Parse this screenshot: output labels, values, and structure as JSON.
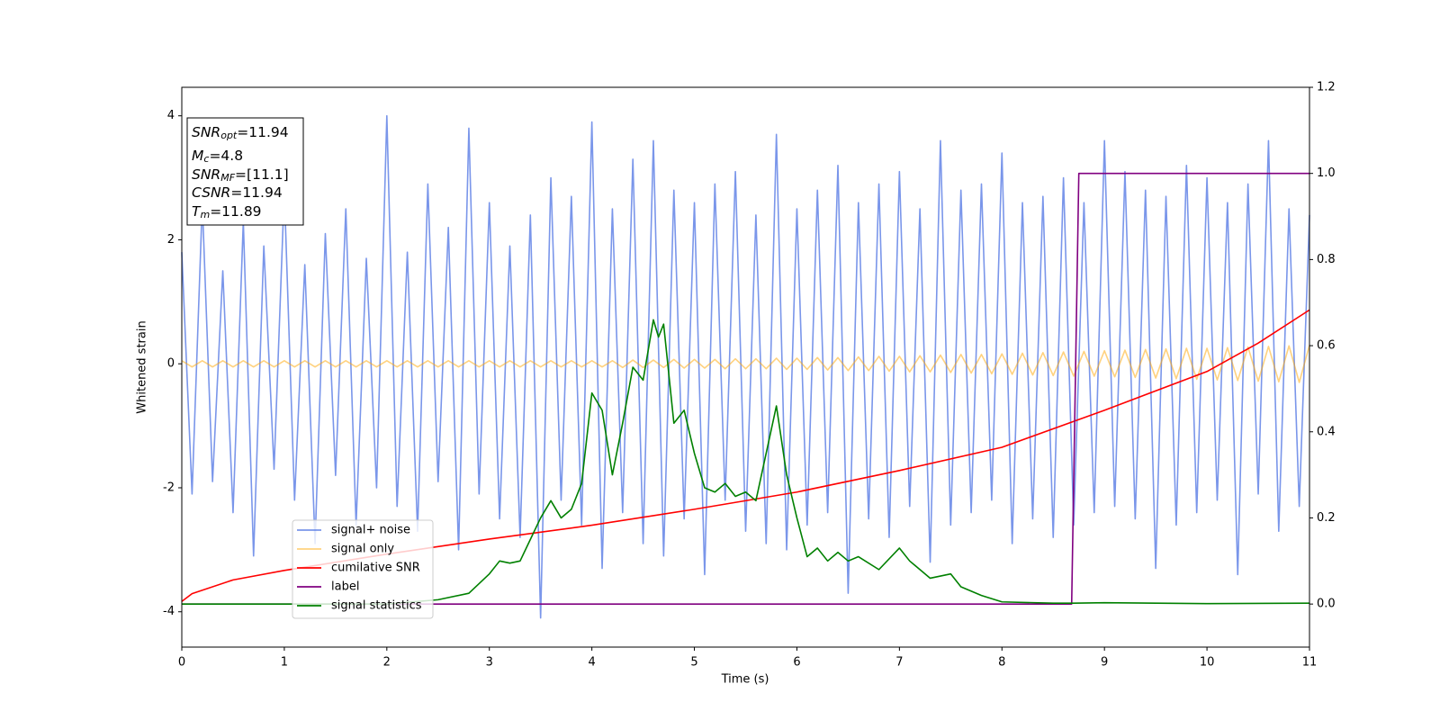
{
  "chart_data": {
    "type": "line",
    "xlabel": "Time (s)",
    "ylabel": "Whitened strain",
    "xlim": [
      0,
      11
    ],
    "xticks": [
      0,
      1,
      2,
      3,
      4,
      5,
      6,
      7,
      8,
      9,
      10,
      11
    ],
    "ylim": [
      -4.57,
      4.46
    ],
    "yticks": [
      -4,
      -2,
      0,
      2,
      4
    ],
    "y2lim": [
      -0.1,
      1.2
    ],
    "y2ticks": [
      {
        "value": 0,
        "label": "0.0"
      },
      0.2,
      0.4,
      0.6,
      0.8,
      {
        "value": 1,
        "label": "1.0"
      },
      1.2
    ],
    "legend": "lower left",
    "annotation": [
      {
        "symbol": "SNR",
        "subscript": "opt",
        "text": "=11.94"
      },
      {
        "symbol": "M",
        "subscript": "c",
        "text": "=4.8"
      },
      {
        "symbol": "SNR",
        "subscript": "MF",
        "text": "=[11.1]"
      },
      {
        "symbol": "CSNR",
        "text": "=11.94"
      },
      {
        "symbol": "T",
        "subscript": "m",
        "text": "=11.89"
      }
    ],
    "x": [
      0,
      0.1,
      0.2,
      0.3,
      0.4,
      0.5,
      0.6,
      0.7,
      0.8,
      0.9,
      1,
      1.1,
      1.2,
      1.3,
      1.4,
      1.5,
      1.6,
      1.7,
      1.8,
      1.9,
      2,
      2.1,
      2.2,
      2.3,
      2.4,
      2.5,
      2.6,
      2.7,
      2.8,
      2.9,
      3,
      3.1,
      3.2,
      3.3,
      3.4,
      3.5,
      3.6,
      3.7,
      3.8,
      3.9,
      4,
      4.1,
      4.2,
      4.3,
      4.4,
      4.5,
      4.6,
      4.7,
      4.8,
      4.9,
      5,
      5.1,
      5.2,
      5.3,
      5.4,
      5.5,
      5.6,
      5.7,
      5.8,
      5.9,
      6,
      6.1,
      6.2,
      6.3,
      6.4,
      6.5,
      6.6,
      6.7,
      6.8,
      6.9,
      7,
      7.1,
      7.2,
      7.3,
      7.4,
      7.5,
      7.6,
      7.7,
      7.8,
      7.9,
      8,
      8.1,
      8.2,
      8.3,
      8.4,
      8.5,
      8.6,
      8.7,
      8.8,
      8.9,
      9,
      9.1,
      9.2,
      9.3,
      9.4,
      9.5,
      9.6,
      9.7,
      9.8,
      9.9,
      10,
      10.1,
      10.2,
      10.3,
      10.4,
      10.5,
      10.6,
      10.7,
      10.8,
      10.9,
      11
    ],
    "series": [
      {
        "name": "signal+ noise",
        "color": "#4169e1",
        "opacity": 0.7,
        "values": [
          1.8,
          -2.1,
          2.6,
          -1.9,
          1.5,
          -2.4,
          2.3,
          -3.1,
          1.9,
          -1.7,
          2.8,
          -2.2,
          1.6,
          -2.9,
          2.1,
          -1.8,
          2.5,
          -2.6,
          1.7,
          -2.0,
          4.0,
          -2.3,
          1.8,
          -2.7,
          2.9,
          -1.9,
          2.2,
          -3.0,
          3.8,
          -2.1,
          2.6,
          -2.5,
          1.9,
          -2.8,
          2.4,
          -4.1,
          3.0,
          -2.2,
          2.7,
          -2.6,
          3.9,
          -3.3,
          2.5,
          -2.4,
          3.3,
          -2.9,
          3.6,
          -3.1,
          2.8,
          -2.5,
          2.6,
          -3.4,
          2.9,
          -2.2,
          3.1,
          -2.7,
          2.4,
          -2.9,
          3.7,
          -3.0,
          2.5,
          -2.6,
          2.8,
          -2.4,
          3.2,
          -3.7,
          2.6,
          -2.5,
          2.9,
          -2.8,
          3.1,
          -2.3,
          2.5,
          -3.2,
          3.6,
          -2.6,
          2.8,
          -2.4,
          2.9,
          -2.2,
          3.4,
          -2.9,
          2.6,
          -2.5,
          2.7,
          -2.8,
          3.0,
          -2.6,
          2.6,
          -2.4,
          3.6,
          -2.3,
          3.1,
          -2.5,
          2.8,
          -3.3,
          2.7,
          -2.6,
          3.2,
          -2.4,
          3.0,
          -2.2,
          2.6,
          -3.4,
          2.9,
          -2.1,
          3.6,
          -2.7,
          2.5,
          -2.3,
          2.4
        ]
      },
      {
        "name": "signal only",
        "color": "#ffa500",
        "opacity": 0.5,
        "values": [
          0.05,
          -0.05,
          0.05,
          -0.05,
          0.05,
          -0.05,
          0.05,
          -0.05,
          0.05,
          -0.05,
          0.05,
          -0.05,
          0.05,
          -0.05,
          0.05,
          -0.05,
          0.05,
          -0.05,
          0.05,
          -0.05,
          0.05,
          -0.05,
          0.05,
          -0.05,
          0.05,
          -0.05,
          0.05,
          -0.05,
          0.05,
          -0.05,
          0.05,
          -0.05,
          0.05,
          -0.05,
          0.05,
          -0.05,
          0.05,
          -0.05,
          0.05,
          -0.05,
          0.05,
          -0.05,
          0.05,
          -0.06,
          0.06,
          -0.06,
          0.06,
          -0.06,
          0.07,
          -0.07,
          0.07,
          -0.07,
          0.07,
          -0.08,
          0.08,
          -0.08,
          0.08,
          -0.08,
          0.09,
          -0.09,
          0.09,
          -0.09,
          0.1,
          -0.1,
          0.1,
          -0.11,
          0.11,
          -0.11,
          0.12,
          -0.12,
          0.12,
          -0.13,
          0.13,
          -0.13,
          0.14,
          -0.14,
          0.15,
          -0.15,
          0.15,
          -0.16,
          0.16,
          -0.17,
          0.17,
          -0.18,
          0.18,
          -0.19,
          0.19,
          -0.2,
          0.2,
          -0.2,
          0.21,
          -0.21,
          0.22,
          -0.22,
          0.23,
          -0.23,
          0.24,
          -0.24,
          0.25,
          -0.25,
          0.25,
          -0.26,
          0.26,
          -0.27,
          0.27,
          -0.28,
          0.28,
          -0.29,
          0.29,
          -0.3,
          0.3
        ]
      },
      {
        "name": "cumilative SNR",
        "color": "#ff0000",
        "axis": "y2",
        "x": [
          0,
          0.1,
          0.5,
          1,
          2,
          3,
          4,
          5,
          6,
          7,
          8,
          9,
          10,
          10.5,
          11
        ],
        "values": [
          0.006,
          0.024,
          0.056,
          0.078,
          0.116,
          0.151,
          0.183,
          0.22,
          0.26,
          0.31,
          0.364,
          0.45,
          0.54,
          0.606,
          0.683
        ]
      },
      {
        "name": "label",
        "color": "#800080",
        "axis": "y2",
        "x": [
          0,
          8.68,
          8.75,
          11
        ],
        "values": [
          0,
          0,
          1,
          1
        ]
      },
      {
        "name": "signal statistics",
        "color": "#008000",
        "axis": "y2",
        "x": [
          0,
          2,
          2.5,
          2.8,
          3,
          3.1,
          3.2,
          3.3,
          3.4,
          3.5,
          3.6,
          3.7,
          3.8,
          3.9,
          4,
          4.1,
          4.2,
          4.3,
          4.4,
          4.5,
          4.6,
          4.65,
          4.7,
          4.8,
          4.9,
          5,
          5.1,
          5.2,
          5.3,
          5.4,
          5.5,
          5.6,
          5.7,
          5.8,
          5.9,
          6,
          6.1,
          6.2,
          6.3,
          6.4,
          6.5,
          6.6,
          6.8,
          7,
          7.1,
          7.3,
          7.5,
          7.6,
          7.8,
          8,
          8.5,
          8.7,
          9,
          10,
          11
        ],
        "values": [
          0,
          0,
          0.01,
          0.025,
          0.07,
          0.1,
          0.095,
          0.1,
          0.15,
          0.2,
          0.24,
          0.2,
          0.22,
          0.28,
          0.49,
          0.45,
          0.3,
          0.42,
          0.55,
          0.52,
          0.66,
          0.62,
          0.65,
          0.42,
          0.45,
          0.35,
          0.27,
          0.26,
          0.28,
          0.25,
          0.26,
          0.24,
          0.35,
          0.46,
          0.3,
          0.2,
          0.11,
          0.13,
          0.1,
          0.12,
          0.1,
          0.11,
          0.08,
          0.13,
          0.1,
          0.06,
          0.07,
          0.04,
          0.02,
          0.005,
          0.002,
          0.002,
          0.003,
          0.001,
          0.002
        ]
      }
    ]
  }
}
